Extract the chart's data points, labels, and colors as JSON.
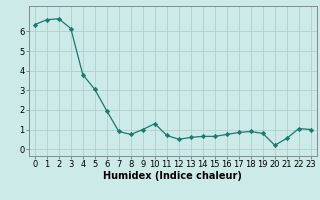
{
  "x": [
    0,
    1,
    2,
    3,
    4,
    5,
    6,
    7,
    8,
    9,
    10,
    11,
    12,
    13,
    14,
    15,
    16,
    17,
    18,
    19,
    20,
    21,
    22,
    23
  ],
  "y": [
    6.35,
    6.6,
    6.65,
    6.15,
    3.8,
    3.05,
    1.95,
    0.9,
    0.75,
    1.0,
    1.3,
    0.7,
    0.5,
    0.6,
    0.65,
    0.65,
    0.75,
    0.85,
    0.9,
    0.8,
    0.2,
    0.55,
    1.05,
    1.0
  ],
  "line_color": "#1a7a6e",
  "marker": "D",
  "marker_size": 2.2,
  "bg_color": "#cceae8",
  "grid_color": "#b0c8c8",
  "xlabel": "Humidex (Indice chaleur)",
  "xlim": [
    -0.5,
    23.5
  ],
  "ylim": [
    -0.35,
    7.3
  ],
  "yticks": [
    0,
    1,
    2,
    3,
    4,
    5,
    6
  ],
  "xtick_labels": [
    "0",
    "1",
    "2",
    "3",
    "4",
    "5",
    "6",
    "7",
    "8",
    "9",
    "10",
    "11",
    "12",
    "13",
    "14",
    "15",
    "16",
    "17",
    "18",
    "19",
    "20",
    "21",
    "22",
    "23"
  ],
  "xlabel_fontsize": 7.0,
  "tick_fontsize": 6.0,
  "linewidth": 0.9
}
